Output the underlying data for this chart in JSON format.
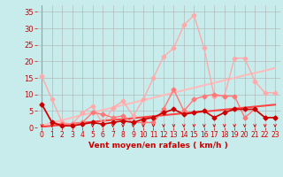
{
  "x": [
    0,
    1,
    2,
    3,
    4,
    5,
    6,
    7,
    8,
    9,
    10,
    11,
    12,
    13,
    14,
    15,
    16,
    17,
    18,
    19,
    20,
    21,
    22,
    23
  ],
  "series": [
    {
      "name": "rafales_light",
      "y": [
        15.5,
        8.5,
        1.5,
        1.0,
        4.5,
        6.5,
        1.0,
        6.0,
        8.0,
        3.5,
        8.5,
        15.0,
        21.5,
        24.0,
        31.0,
        34.0,
        24.0,
        9.5,
        9.5,
        21.0,
        21.0,
        14.0,
        10.5,
        10.5
      ],
      "color": "#ffaaaa",
      "linewidth": 1.0,
      "marker": "D",
      "markersize": 2.5
    },
    {
      "name": "vent_light",
      "y": [
        7.0,
        1.5,
        1.0,
        1.0,
        1.5,
        4.5,
        4.0,
        3.0,
        3.5,
        1.5,
        1.5,
        1.5,
        5.5,
        11.5,
        5.0,
        8.5,
        9.5,
        10.0,
        9.5,
        9.5,
        3.0,
        5.5,
        3.0,
        3.0
      ],
      "color": "#ff7777",
      "linewidth": 1.0,
      "marker": "D",
      "markersize": 2.5
    },
    {
      "name": "trend_rafales",
      "y": [
        0.5,
        1.5,
        2.2,
        3.0,
        3.8,
        4.5,
        5.3,
        6.0,
        6.8,
        7.5,
        8.3,
        9.0,
        9.8,
        10.5,
        11.3,
        12.0,
        12.8,
        13.5,
        14.3,
        15.0,
        15.8,
        16.5,
        17.2,
        18.0
      ],
      "color": "#ffbbbb",
      "linewidth": 1.5,
      "marker": null,
      "markersize": 0
    },
    {
      "name": "trend_vent",
      "y": [
        0.2,
        0.5,
        0.8,
        1.1,
        1.4,
        1.7,
        2.0,
        2.3,
        2.5,
        2.8,
        3.1,
        3.4,
        3.7,
        4.0,
        4.3,
        4.6,
        4.8,
        5.1,
        5.4,
        5.7,
        6.0,
        6.3,
        6.6,
        6.9
      ],
      "color": "#ff4444",
      "linewidth": 1.5,
      "marker": null,
      "markersize": 0
    },
    {
      "name": "vent_moyen",
      "y": [
        7.0,
        1.5,
        0.5,
        0.5,
        1.0,
        1.5,
        1.0,
        1.5,
        2.0,
        1.5,
        2.5,
        3.0,
        4.5,
        5.5,
        4.0,
        4.5,
        5.0,
        3.0,
        4.5,
        5.5,
        5.5,
        5.5,
        3.0,
        3.0
      ],
      "color": "#cc0000",
      "linewidth": 1.2,
      "marker": "D",
      "markersize": 2.5
    }
  ],
  "xlabel": "Vent moyen/en rafales ( km/h )",
  "ylim": [
    0,
    37
  ],
  "xlim": [
    -0.5,
    23.5
  ],
  "yticks": [
    0,
    5,
    10,
    15,
    20,
    25,
    30,
    35
  ],
  "xticks": [
    0,
    1,
    2,
    3,
    4,
    5,
    6,
    7,
    8,
    9,
    10,
    11,
    12,
    13,
    14,
    15,
    16,
    17,
    18,
    19,
    20,
    21,
    22,
    23
  ],
  "bg_color": "#c8ecec",
  "grid_color": "#b0b0b0",
  "tick_color": "#cc0000",
  "label_color": "#cc0000"
}
